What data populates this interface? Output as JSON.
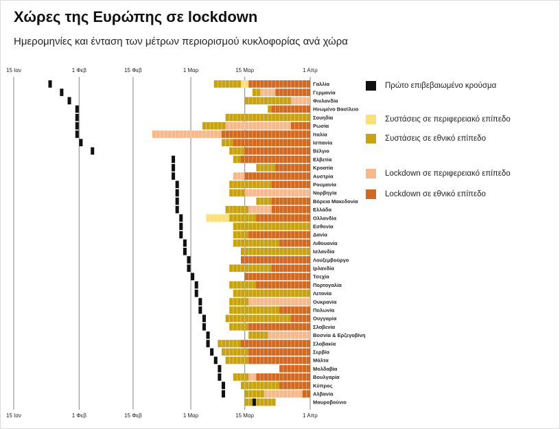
{
  "chart_data": {
    "type": "timeline",
    "title": "Χώρες της Ευρώπης σε lockdown",
    "subtitle": "Ημερομηνίες και ένταση των μέτρων περιορισμού κυκλοφορίας ανά χώρα",
    "xlim": [
      0,
      77
    ],
    "xticks": [
      {
        "value": 0,
        "label": "15 Ιαν"
      },
      {
        "value": 17,
        "label": "1 Φεβ"
      },
      {
        "value": 31,
        "label": "15 Φεβ"
      },
      {
        "value": 46,
        "label": "1 Μαρ"
      },
      {
        "value": 60,
        "label": "15 Μαρ"
      },
      {
        "value": 77,
        "label": "1 Απρ"
      }
    ],
    "legend": [
      {
        "name": "Πρώτο επιβεβαιωμένο κρούσμα",
        "color": "#111111"
      },
      {
        "name": "Συστάσεις σε περιφερειακό επίπεδο",
        "color": "#fbdf77"
      },
      {
        "name": "Συστάσεις σε εθνικό επίπεδο",
        "color": "#c8a30f"
      },
      {
        "name": "Lockdown σε περιφερειακό επίπεδο",
        "color": "#f6b98b"
      },
      {
        "name": "Lockdown σε εθνικό επίπεδο",
        "color": "#d2691f"
      }
    ],
    "rows": [
      {
        "country": "Γαλλία",
        "first_case": 9,
        "periods": [
          [
            52,
            59,
            2
          ],
          [
            59,
            61,
            1
          ],
          [
            61,
            77,
            4
          ]
        ]
      },
      {
        "country": "Γερμανία",
        "first_case": 12,
        "periods": [
          [
            62,
            64,
            2
          ],
          [
            64,
            68,
            3
          ],
          [
            68,
            77,
            4
          ]
        ]
      },
      {
        "country": "Φινλανδία",
        "first_case": 14,
        "periods": [
          [
            60,
            72,
            2
          ],
          [
            72,
            77,
            3
          ]
        ]
      },
      {
        "country": "Ηνωμένο Βασίλειο",
        "first_case": 16,
        "periods": [
          [
            66,
            67,
            2
          ],
          [
            67,
            77,
            4
          ]
        ]
      },
      {
        "country": "Σουηδία",
        "first_case": 16,
        "periods": [
          [
            55,
            77,
            2
          ]
        ]
      },
      {
        "country": "Ρωσία",
        "first_case": 16,
        "periods": [
          [
            49,
            55,
            2
          ],
          [
            55,
            72,
            3
          ],
          [
            72,
            77,
            4
          ]
        ]
      },
      {
        "country": "Ιταλία",
        "first_case": 16,
        "periods": [
          [
            36,
            54,
            3
          ],
          [
            54,
            77,
            4
          ]
        ]
      },
      {
        "country": "Ισπανία",
        "first_case": 17,
        "periods": [
          [
            54,
            57,
            2
          ],
          [
            57,
            77,
            4
          ]
        ]
      },
      {
        "country": "Βέλγιο",
        "first_case": 20,
        "periods": [
          [
            56,
            60,
            2
          ],
          [
            60,
            77,
            4
          ]
        ]
      },
      {
        "country": "Ελβετία",
        "first_case": 41,
        "periods": [
          [
            57,
            59,
            2
          ],
          [
            59,
            77,
            4
          ]
        ]
      },
      {
        "country": "Κροατία",
        "first_case": 41,
        "periods": [
          [
            63,
            68,
            2
          ],
          [
            68,
            77,
            4
          ]
        ]
      },
      {
        "country": "Αυστρία",
        "first_case": 41,
        "periods": [
          [
            57,
            60,
            3
          ],
          [
            60,
            77,
            4
          ]
        ]
      },
      {
        "country": "Ρουμανία",
        "first_case": 42,
        "periods": [
          [
            56,
            67,
            2
          ],
          [
            67,
            77,
            4
          ]
        ]
      },
      {
        "country": "Νορβηγία",
        "first_case": 42,
        "periods": [
          [
            56,
            60,
            2
          ],
          [
            60,
            77,
            3
          ]
        ]
      },
      {
        "country": "Βόρεια Μακεδονία",
        "first_case": 42,
        "periods": [
          [
            63,
            67,
            2
          ],
          [
            67,
            77,
            4
          ]
        ]
      },
      {
        "country": "Ελλάδα",
        "first_case": 42,
        "periods": [
          [
            55,
            61,
            2
          ],
          [
            61,
            67,
            3
          ],
          [
            67,
            77,
            4
          ]
        ]
      },
      {
        "country": "Ολλανδία",
        "first_case": 43,
        "periods": [
          [
            50,
            56,
            1
          ],
          [
            56,
            63,
            2
          ],
          [
            63,
            77,
            4
          ]
        ]
      },
      {
        "country": "Εσθονία",
        "first_case": 43,
        "periods": [
          [
            57,
            77,
            2
          ]
        ]
      },
      {
        "country": "Δανία",
        "first_case": 43,
        "periods": [
          [
            57,
            61,
            2
          ],
          [
            61,
            77,
            4
          ]
        ]
      },
      {
        "country": "Λιθουανία",
        "first_case": 44,
        "periods": [
          [
            57,
            69,
            2
          ],
          [
            69,
            77,
            4
          ]
        ]
      },
      {
        "country": "Ισλανδία",
        "first_case": 44,
        "periods": [
          [
            59,
            77,
            2
          ]
        ]
      },
      {
        "country": "Λουξεμβούργο",
        "first_case": 45,
        "periods": [
          [
            59,
            77,
            4
          ]
        ]
      },
      {
        "country": "Ιρλανδία",
        "first_case": 45,
        "periods": [
          [
            56,
            67,
            2
          ],
          [
            67,
            77,
            4
          ]
        ]
      },
      {
        "country": "Τσεχία",
        "first_case": 46,
        "periods": [
          [
            60,
            77,
            4
          ]
        ]
      },
      {
        "country": "Πορτογαλία",
        "first_case": 47,
        "periods": [
          [
            56,
            63,
            2
          ],
          [
            63,
            77,
            4
          ]
        ]
      },
      {
        "country": "Λετονία",
        "first_case": 47,
        "periods": [
          [
            57,
            77,
            2
          ]
        ]
      },
      {
        "country": "Ουκρανία",
        "first_case": 48,
        "periods": [
          [
            56,
            61,
            2
          ],
          [
            61,
            77,
            3
          ]
        ]
      },
      {
        "country": "Πολωνία",
        "first_case": 48,
        "periods": [
          [
            56,
            69,
            2
          ],
          [
            69,
            77,
            4
          ]
        ]
      },
      {
        "country": "Ουγγαρία",
        "first_case": 49,
        "periods": [
          [
            55,
            72,
            2
          ],
          [
            72,
            77,
            4
          ]
        ]
      },
      {
        "country": "Σλοβενία",
        "first_case": 49,
        "periods": [
          [
            56,
            61,
            2
          ],
          [
            61,
            77,
            4
          ]
        ]
      },
      {
        "country": "Βοσνία & Ερζεγοβίνη",
        "first_case": 50,
        "periods": [
          [
            61,
            66,
            2
          ],
          [
            66,
            77,
            3
          ]
        ]
      },
      {
        "country": "Σλοβακία",
        "first_case": 50,
        "periods": [
          [
            53,
            59,
            2
          ],
          [
            59,
            77,
            4
          ]
        ]
      },
      {
        "country": "Σερβία",
        "first_case": 51,
        "periods": [
          [
            54,
            61,
            2
          ],
          [
            61,
            77,
            4
          ]
        ]
      },
      {
        "country": "Μάλτα",
        "first_case": 52,
        "periods": [
          [
            55,
            61,
            2
          ],
          [
            61,
            77,
            4
          ]
        ]
      },
      {
        "country": "Μολδαβία",
        "first_case": 53,
        "periods": [
          [
            69,
            77,
            4
          ]
        ]
      },
      {
        "country": "Βουλγαρία",
        "first_case": 53,
        "periods": [
          [
            57,
            61,
            2
          ],
          [
            61,
            63,
            3
          ],
          [
            63,
            77,
            4
          ]
        ]
      },
      {
        "country": "Κύπρος",
        "first_case": 54,
        "periods": [
          [
            59,
            69,
            2
          ],
          [
            69,
            77,
            4
          ]
        ]
      },
      {
        "country": "Αλβανία",
        "first_case": 54,
        "periods": [
          [
            60,
            65,
            2
          ],
          [
            65,
            75,
            3
          ],
          [
            75,
            77,
            4
          ]
        ]
      },
      {
        "country": "Μαυροβούνιο",
        "first_case": 62,
        "periods": [
          [
            60,
            68,
            2
          ]
        ]
      }
    ]
  }
}
